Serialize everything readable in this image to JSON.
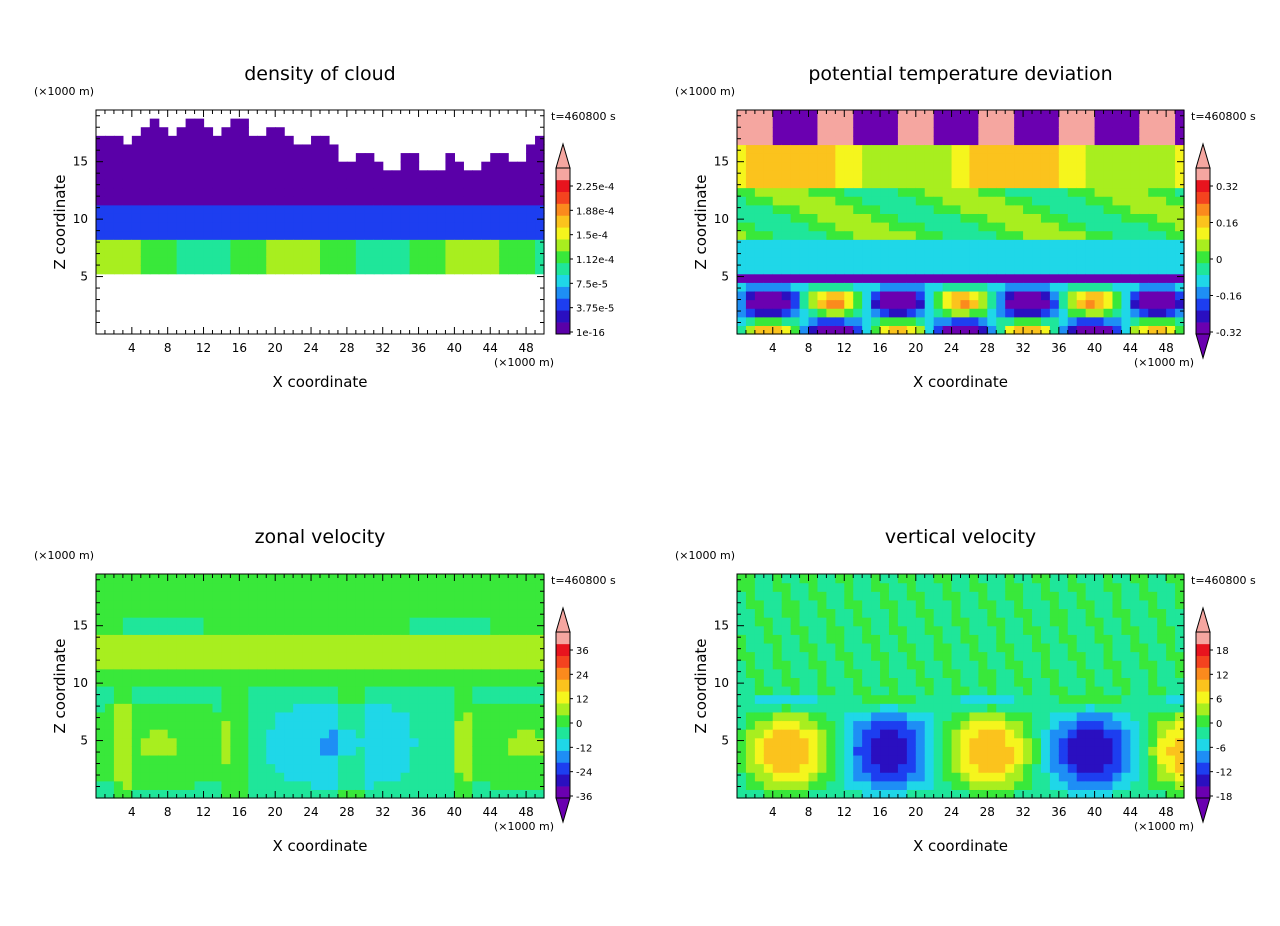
{
  "chart_data": [
    {
      "type": "heatmap",
      "title": "density of cloud",
      "xlabel": "X coordinate",
      "ylabel": "Z coordinate",
      "x_unit": "(×1000 m)",
      "y_unit": "(×1000 m)",
      "time_label": "t=460800 s",
      "xlim": [
        0,
        50
      ],
      "ylim": [
        0,
        19.5
      ],
      "xticks": [
        4,
        8,
        12,
        16,
        20,
        24,
        28,
        32,
        36,
        40,
        44,
        48
      ],
      "yticks": [
        5,
        10,
        15
      ],
      "colorbar": {
        "labels": [
          "2.25e-4",
          "1.88e-4",
          "1.5e-4",
          "1.12e-4",
          "7.5e-5",
          "3.75e-5",
          "1e-16"
        ],
        "colors": [
          "#5a00a8",
          "#2a0fc0",
          "#1d3ef0",
          "#1e8ef5",
          "#1fd7e8",
          "#1fe69a",
          "#39e83a",
          "#a8ee1f",
          "#f5f51d",
          "#fbc31d",
          "#fb8a1d",
          "#f4431f",
          "#e8141e",
          "#f5a6a0"
        ],
        "extend_low": false,
        "extend_high": true
      }
    },
    {
      "type": "heatmap",
      "title": "potential temperature deviation",
      "xlabel": "X coordinate",
      "ylabel": "Z coordinate",
      "x_unit": "(×1000 m)",
      "y_unit": "(×1000 m)",
      "time_label": "t=460800 s",
      "xlim": [
        0,
        50
      ],
      "ylim": [
        0,
        19.5
      ],
      "xticks": [
        4,
        8,
        12,
        16,
        20,
        24,
        28,
        32,
        36,
        40,
        44,
        48
      ],
      "yticks": [
        5,
        10,
        15
      ],
      "colorbar": {
        "labels": [
          "0.32",
          "0.16",
          "0",
          "-0.16",
          "-0.32"
        ],
        "colors": [
          "#6a00b0",
          "#2a0fc0",
          "#1d3ef0",
          "#1e8ef5",
          "#1fd7e8",
          "#1fe69a",
          "#39e83a",
          "#a8ee1f",
          "#f5f51d",
          "#fbc31d",
          "#fb8a1d",
          "#f4431f",
          "#e8141e",
          "#f5a6a0"
        ],
        "extend_low": true,
        "extend_high": true
      }
    },
    {
      "type": "heatmap",
      "title": "zonal velocity",
      "xlabel": "X coordinate",
      "ylabel": "Z coordinate",
      "x_unit": "(×1000 m)",
      "y_unit": "(×1000 m)",
      "time_label": "t=460800 s",
      "xlim": [
        0,
        50
      ],
      "ylim": [
        0,
        19.5
      ],
      "xticks": [
        4,
        8,
        12,
        16,
        20,
        24,
        28,
        32,
        36,
        40,
        44,
        48
      ],
      "yticks": [
        5,
        10,
        15
      ],
      "colorbar": {
        "labels": [
          "36",
          "24",
          "12",
          "0",
          "-12",
          "-24",
          "-36"
        ],
        "colors": [
          "#6a00b0",
          "#2a0fc0",
          "#1d3ef0",
          "#1e8ef5",
          "#1fd7e8",
          "#1fe69a",
          "#39e83a",
          "#a8ee1f",
          "#f5f51d",
          "#fbc31d",
          "#fb8a1d",
          "#f4431f",
          "#e8141e",
          "#f5a6a0"
        ],
        "extend_low": true,
        "extend_high": true
      }
    },
    {
      "type": "heatmap",
      "title": "vertical velocity",
      "xlabel": "X coordinate",
      "ylabel": "Z coordinate",
      "x_unit": "(×1000 m)",
      "y_unit": "(×1000 m)",
      "time_label": "t=460800 s",
      "xlim": [
        0,
        50
      ],
      "ylim": [
        0,
        19.5
      ],
      "xticks": [
        4,
        8,
        12,
        16,
        20,
        24,
        28,
        32,
        36,
        40,
        44,
        48
      ],
      "yticks": [
        5,
        10,
        15
      ],
      "colorbar": {
        "labels": [
          "18",
          "12",
          "6",
          "0",
          "-6",
          "-12",
          "-18"
        ],
        "colors": [
          "#6a00b0",
          "#2a0fc0",
          "#1d3ef0",
          "#1e8ef5",
          "#1fd7e8",
          "#1fe69a",
          "#39e83a",
          "#a8ee1f",
          "#f5f51d",
          "#fbc31d",
          "#fb8a1d",
          "#f4431f",
          "#e8141e",
          "#f5a6a0"
        ],
        "extend_low": true,
        "extend_high": true
      }
    }
  ]
}
